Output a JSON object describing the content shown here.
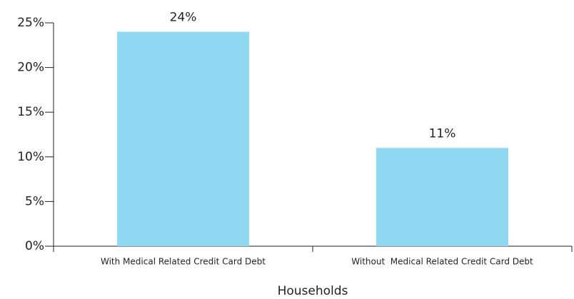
{
  "chart_data": {
    "type": "bar",
    "x_label": "Households",
    "categories": [
      "With Medical Related Credit Card Debt",
      "Without  Medical Related Credit Card Debt"
    ],
    "values": [
      24,
      11
    ],
    "value_labels": [
      "24%",
      "11%"
    ],
    "color": "#91d8f2",
    "ylim": [
      0,
      25
    ],
    "yticks": [
      {
        "value": 0,
        "label": "0%"
      },
      {
        "value": 5,
        "label": "5%"
      },
      {
        "value": 10,
        "label": "10%"
      },
      {
        "value": 15,
        "label": "15%"
      },
      {
        "value": 20,
        "label": "20%"
      },
      {
        "value": 25,
        "label": "25%"
      }
    ],
    "grid": false
  }
}
